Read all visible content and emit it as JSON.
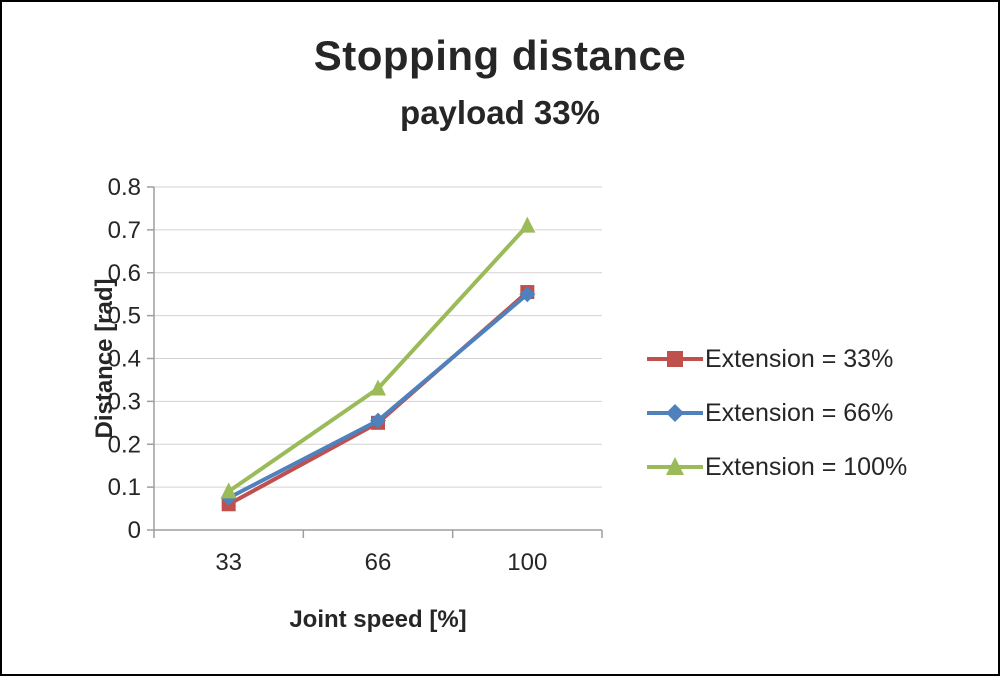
{
  "title": "Stopping distance",
  "subtitle": "payload 33%",
  "chart_data": {
    "type": "line",
    "categories": [
      "33",
      "66",
      "100"
    ],
    "series": [
      {
        "name": "Extension = 33%",
        "marker": "square",
        "color": "#c0504d",
        "values": [
          0.06,
          0.25,
          0.555
        ]
      },
      {
        "name": "Extension = 66%",
        "marker": "diamond",
        "color": "#4f81bd",
        "values": [
          0.075,
          0.255,
          0.55
        ]
      },
      {
        "name": "Extension = 100%",
        "marker": "triangle",
        "color": "#9bbb59",
        "values": [
          0.09,
          0.33,
          0.71
        ]
      }
    ],
    "xlabel": "Joint speed [%]",
    "ylabel": "Distance [rad]",
    "ylim": [
      0,
      0.8
    ],
    "yticks": [
      0,
      0.1,
      0.2,
      0.3,
      0.4,
      0.5,
      0.6,
      0.7,
      0.8
    ],
    "grid": true,
    "legend_position": "right",
    "gridline_color": "#d3d3d3",
    "axis_color": "#9e9e9e"
  }
}
